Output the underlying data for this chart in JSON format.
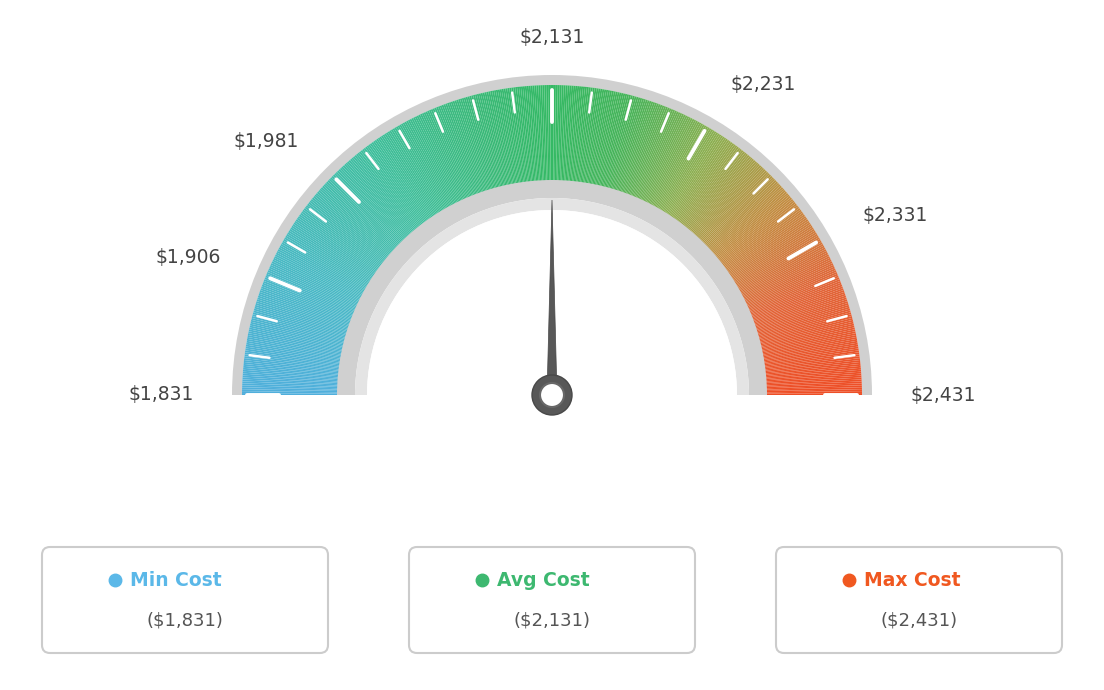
{
  "min_val": 1831,
  "max_val": 2431,
  "avg_val": 2131,
  "label_values": [
    1831,
    1906,
    1981,
    2131,
    2231,
    2331,
    2431
  ],
  "label_texts": [
    "$1,831",
    "$1,906",
    "$1,981",
    "$2,131",
    "$2,231",
    "$2,331",
    "$2,431"
  ],
  "legend": [
    {
      "label": "Min Cost",
      "value": "($1,831)",
      "color": "#5bb8e8"
    },
    {
      "label": "Avg Cost",
      "value": "($2,131)",
      "color": "#3db870"
    },
    {
      "label": "Max Cost",
      "value": "($2,431)",
      "color": "#f05820"
    }
  ],
  "color_stops": [
    [
      0.0,
      [
        80,
        175,
        220
      ]
    ],
    [
      0.15,
      [
        72,
        185,
        195
      ]
    ],
    [
      0.3,
      [
        62,
        190,
        155
      ]
    ],
    [
      0.42,
      [
        58,
        185,
        120
      ]
    ],
    [
      0.5,
      [
        52,
        185,
        100
      ]
    ],
    [
      0.58,
      [
        70,
        180,
        90
      ]
    ],
    [
      0.68,
      [
        140,
        175,
        80
      ]
    ],
    [
      0.78,
      [
        195,
        140,
        65
      ]
    ],
    [
      0.88,
      [
        225,
        100,
        55
      ]
    ],
    [
      1.0,
      [
        238,
        78,
        38
      ]
    ]
  ],
  "background_color": "#ffffff",
  "needle_color": "#585858",
  "outer_ring_color": "#d0d0d0",
  "inner_ring_color": "#c8c8c8"
}
